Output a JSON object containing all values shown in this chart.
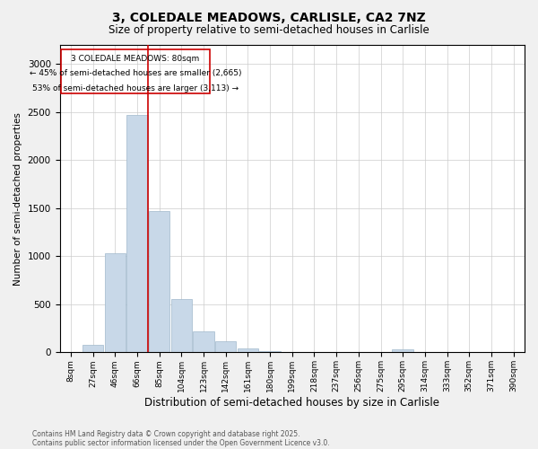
{
  "title1": "3, COLEDALE MEADOWS, CARLISLE, CA2 7NZ",
  "title2": "Size of property relative to semi-detached houses in Carlisle",
  "xlabel": "Distribution of semi-detached houses by size in Carlisle",
  "ylabel": "Number of semi-detached properties",
  "categories": [
    "8sqm",
    "27sqm",
    "46sqm",
    "66sqm",
    "85sqm",
    "104sqm",
    "123sqm",
    "142sqm",
    "161sqm",
    "180sqm",
    "199sqm",
    "218sqm",
    "237sqm",
    "256sqm",
    "275sqm",
    "295sqm",
    "314sqm",
    "333sqm",
    "352sqm",
    "371sqm",
    "390sqm"
  ],
  "values": [
    0,
    75,
    1030,
    2470,
    1470,
    560,
    215,
    115,
    40,
    12,
    8,
    5,
    3,
    2,
    0,
    30,
    0,
    0,
    0,
    0,
    0
  ],
  "bar_color": "#c8d8e8",
  "bar_edge_color": "#a0b8cc",
  "vline_index": 3.5,
  "vline_color": "#cc0000",
  "annotation_title": "3 COLEDALE MEADOWS: 80sqm",
  "annotation_line1": "← 45% of semi-detached houses are smaller (2,665)",
  "annotation_line2": "53% of semi-detached houses are larger (3,113) →",
  "annotation_box_color": "#cc0000",
  "footnote1": "Contains HM Land Registry data © Crown copyright and database right 2025.",
  "footnote2": "Contains public sector information licensed under the Open Government Licence v3.0.",
  "ylim": [
    0,
    3200
  ],
  "yticks": [
    0,
    500,
    1000,
    1500,
    2000,
    2500,
    3000
  ],
  "background_color": "#f0f0f0",
  "plot_background": "#ffffff",
  "title1_fontsize": 10,
  "title2_fontsize": 8.5
}
